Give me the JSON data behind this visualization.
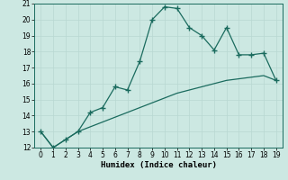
{
  "xlabel": "Humidex (Indice chaleur)",
  "x": [
    0,
    1,
    2,
    3,
    4,
    5,
    6,
    7,
    8,
    9,
    10,
    11,
    12,
    13,
    14,
    15,
    16,
    17,
    18,
    19
  ],
  "line1_y": [
    13,
    12,
    12.5,
    13,
    14.2,
    14.5,
    15.8,
    15.6,
    17.4,
    20.0,
    20.8,
    20.7,
    19.5,
    19.0,
    18.1,
    19.5,
    17.8,
    17.8,
    17.9,
    16.2
  ],
  "line2_y": [
    13,
    12,
    12.5,
    13,
    13.3,
    13.6,
    13.9,
    14.2,
    14.5,
    14.8,
    15.1,
    15.4,
    15.6,
    15.8,
    16.0,
    16.2,
    16.3,
    16.4,
    16.5,
    16.2
  ],
  "line_color": "#1a6b5e",
  "bg_color": "#cce8e2",
  "grid_color": "#b8d8d2",
  "ylim": [
    12,
    21
  ],
  "xlim_min": -0.5,
  "xlim_max": 19.5,
  "yticks": [
    12,
    13,
    14,
    15,
    16,
    17,
    18,
    19,
    20,
    21
  ],
  "xticks": [
    0,
    1,
    2,
    3,
    4,
    5,
    6,
    7,
    8,
    9,
    10,
    11,
    12,
    13,
    14,
    15,
    16,
    17,
    18,
    19
  ],
  "marker": "+",
  "markersize": 4,
  "markeredgewidth": 1.0,
  "linewidth": 0.9,
  "tick_fontsize": 5.5,
  "xlabel_fontsize": 6.5,
  "spine_color": "#1a6b5e"
}
